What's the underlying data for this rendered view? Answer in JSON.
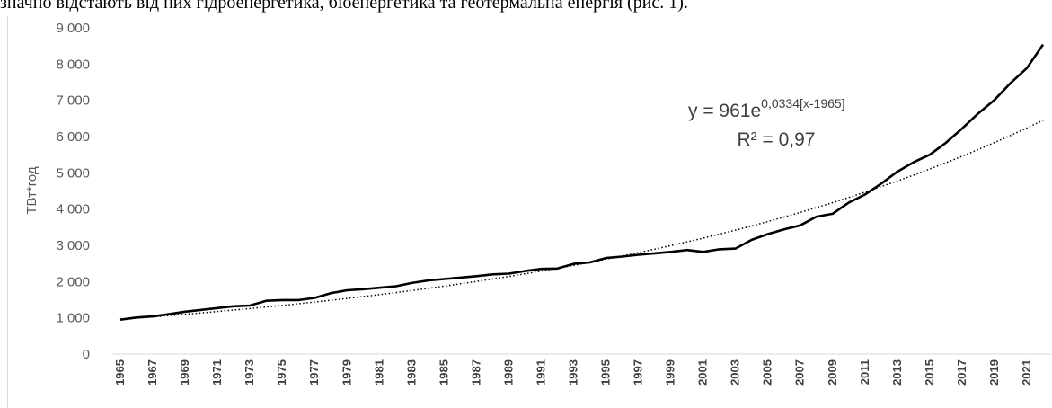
{
  "chart_data": {
    "type": "line",
    "caption": "значно відстають від них гідроенергетика, біоенергетика та геотермальна енергія (рис. 1).",
    "y_label": "ТВт*год",
    "annotation": {
      "equation": "y = 961e",
      "exponent": "0,0334[x-1965]",
      "r2": "R² = 0,97"
    },
    "categories": [
      "1965",
      null,
      "1967",
      null,
      "1969",
      null,
      "1971",
      null,
      "1973",
      null,
      "1975",
      null,
      "1977",
      null,
      "1979",
      null,
      "1981",
      null,
      "1983",
      null,
      "1985",
      null,
      "1987",
      null,
      "1989",
      null,
      "1991",
      null,
      "1993",
      null,
      "1995",
      null,
      "1997",
      null,
      "1999",
      null,
      "2001",
      null,
      "2003",
      null,
      "2005",
      null,
      "2007",
      null,
      "2009",
      null,
      "2011",
      null,
      "2013",
      null,
      "2015",
      null,
      "2017",
      null,
      "2019",
      null,
      "2021",
      null
    ],
    "series": [
      {
        "color": "#000000",
        "style": "solid",
        "values": [
          950,
          1010,
          1040,
          1100,
          1170,
          1220,
          1270,
          1320,
          1340,
          1470,
          1490,
          1490,
          1550,
          1680,
          1760,
          1790,
          1830,
          1870,
          1960,
          2030,
          2070,
          2110,
          2150,
          2200,
          2220,
          2290,
          2350,
          2360,
          2490,
          2530,
          2650,
          2690,
          2740,
          2780,
          2820,
          2870,
          2820,
          2890,
          2910,
          3150,
          3310,
          3440,
          3550,
          3790,
          3870,
          4180,
          4400,
          4700,
          5030,
          5290,
          5500,
          5830,
          6220,
          6640,
          7010,
          7480,
          7890,
          8540
        ]
      },
      {
        "color": "#000000",
        "style": "dotted",
        "values": [
          961,
          994,
          1027,
          1062,
          1098,
          1136,
          1174,
          1214,
          1255,
          1298,
          1342,
          1388,
          1435,
          1484,
          1534,
          1586,
          1640,
          1696,
          1753,
          1813,
          1874,
          1938,
          2004,
          2072,
          2142,
          2215,
          2290,
          2368,
          2448,
          2532,
          2618,
          2707,
          2798,
          2893,
          2992,
          3093,
          3198,
          3307,
          3419,
          3535,
          3656,
          3780,
          3908,
          4041,
          4178,
          4320,
          4467,
          4618,
          4775,
          4937,
          5105,
          5279,
          5458,
          5643,
          5835,
          6033,
          6238,
          6450
        ]
      }
    ],
    "ylim": [
      0,
      9000
    ],
    "yticks": [
      0,
      {
        "value": 1000,
        "label": "1 000"
      },
      {
        "value": 2000,
        "label": "2 000"
      },
      {
        "value": 3000,
        "label": "3 000"
      },
      {
        "value": 4000,
        "label": "4 000"
      },
      {
        "value": 5000,
        "label": "5 000"
      },
      {
        "value": 6000,
        "label": "6 000"
      },
      {
        "value": 7000,
        "label": "7 000"
      },
      {
        "value": 8000,
        "label": "8 000"
      },
      {
        "value": 9000,
        "label": "9 000"
      }
    ],
    "grid": false
  }
}
